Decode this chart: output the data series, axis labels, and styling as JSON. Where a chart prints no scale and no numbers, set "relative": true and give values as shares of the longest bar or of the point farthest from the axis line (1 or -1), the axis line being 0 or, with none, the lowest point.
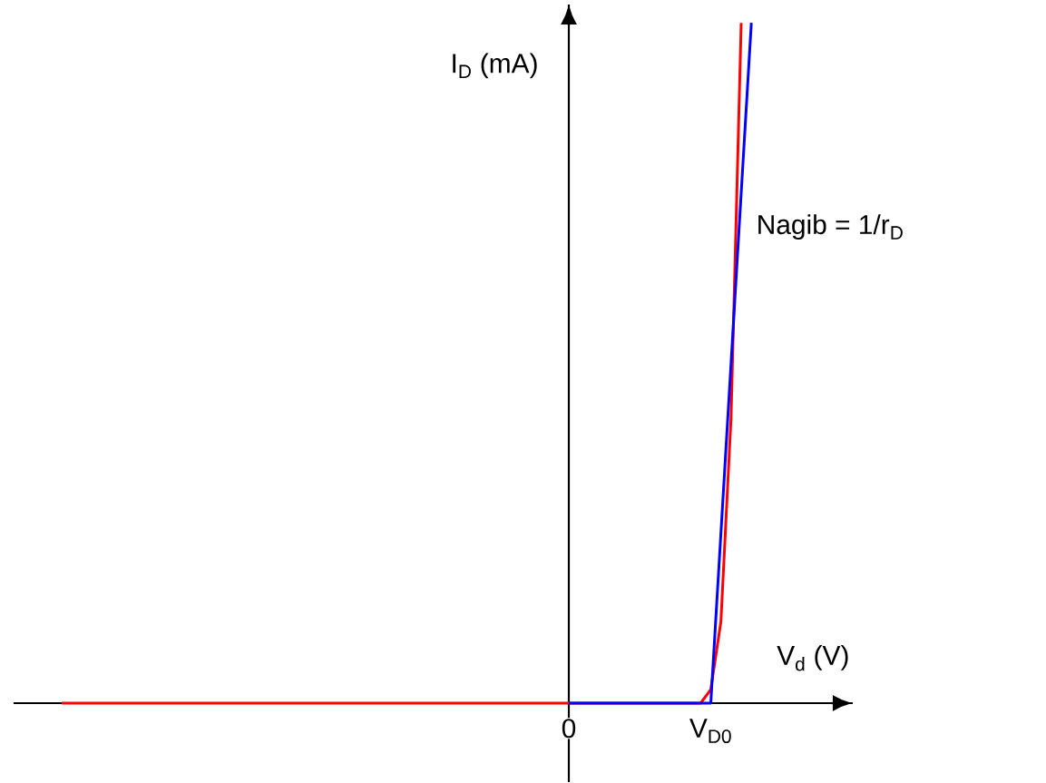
{
  "chart_data": {
    "type": "line",
    "relative": true,
    "xlabel": "V$_{d}$ (V)",
    "ylabel": "I$_{D}$ (mA)",
    "categories": [
      null,
      null,
      null,
      null,
      null,
      null,
      null,
      null,
      null,
      null,
      null,
      null,
      null,
      null,
      null,
      null,
      null,
      null,
      null,
      null,
      null,
      null,
      null,
      null,
      null,
      null,
      null,
      null,
      null,
      null,
      null,
      null,
      null,
      null,
      null,
      null,
      null,
      null,
      null,
      null,
      null,
      null,
      null,
      null,
      null,
      null,
      null,
      null,
      null,
      null,
      "0",
      null,
      null,
      null,
      null,
      null,
      null,
      null,
      null,
      null,
      null,
      null,
      null,
      null,
      "V$_{D0}$",
      null,
      null,
      null,
      null
    ],
    "series": [
      {
        "color": "#ff0000",
        "values": [
          0,
          0,
          0,
          0,
          0,
          0,
          0,
          0,
          0,
          0,
          0,
          0,
          0,
          0,
          0,
          0,
          0,
          0,
          0,
          0,
          0,
          0,
          0,
          0,
          0,
          0,
          0,
          0,
          0,
          0,
          0,
          0,
          0,
          0,
          0,
          0,
          0,
          0,
          0,
          0,
          0,
          0,
          0,
          0,
          0,
          0,
          0,
          0,
          0,
          0,
          0,
          0,
          0,
          0,
          0,
          0,
          0,
          0,
          0,
          0,
          0,
          0,
          0,
          0,
          0.02,
          0.12,
          0.42,
          1.0,
          null
        ]
      },
      {
        "color": "#0000ff",
        "values": [
          null,
          null,
          null,
          null,
          null,
          null,
          null,
          null,
          null,
          null,
          null,
          null,
          null,
          null,
          null,
          null,
          null,
          null,
          null,
          null,
          null,
          null,
          null,
          null,
          null,
          null,
          null,
          null,
          null,
          null,
          null,
          null,
          null,
          null,
          null,
          null,
          null,
          null,
          null,
          null,
          null,
          null,
          null,
          null,
          null,
          null,
          null,
          null,
          null,
          null,
          0,
          0,
          0,
          0,
          0,
          0,
          0,
          0,
          0,
          0,
          0,
          0,
          0,
          0,
          0,
          0.25,
          0.5,
          0.75,
          1.0
        ]
      }
    ],
    "annotations": [
      "Nagib = 1/r$_{D}$"
    ]
  }
}
